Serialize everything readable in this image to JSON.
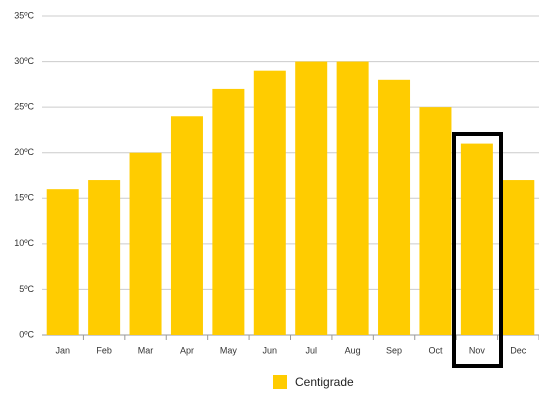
{
  "chart_data": {
    "type": "bar",
    "categories": [
      "Jan",
      "Feb",
      "Mar",
      "Apr",
      "May",
      "Jun",
      "Jul",
      "Aug",
      "Sep",
      "Oct",
      "Nov",
      "Dec"
    ],
    "series": [
      {
        "name": "Centigrade",
        "color": "#ffcc00",
        "values": [
          16,
          17,
          20,
          24,
          27,
          29,
          30,
          30,
          28,
          25,
          21,
          17
        ]
      }
    ],
    "ylim": [
      0,
      35
    ],
    "yticks": [
      {
        "value": 0,
        "label": "0ºC"
      },
      {
        "value": 5,
        "label": "5ºC"
      },
      {
        "value": 10,
        "label": "10ºC"
      },
      {
        "value": 15,
        "label": "15ºC"
      },
      {
        "value": 20,
        "label": "20ºC"
      },
      {
        "value": 25,
        "label": "25ºC"
      },
      {
        "value": 30,
        "label": "30ºC"
      },
      {
        "value": 35,
        "label": "35ºC"
      }
    ],
    "grid": true
  }
}
